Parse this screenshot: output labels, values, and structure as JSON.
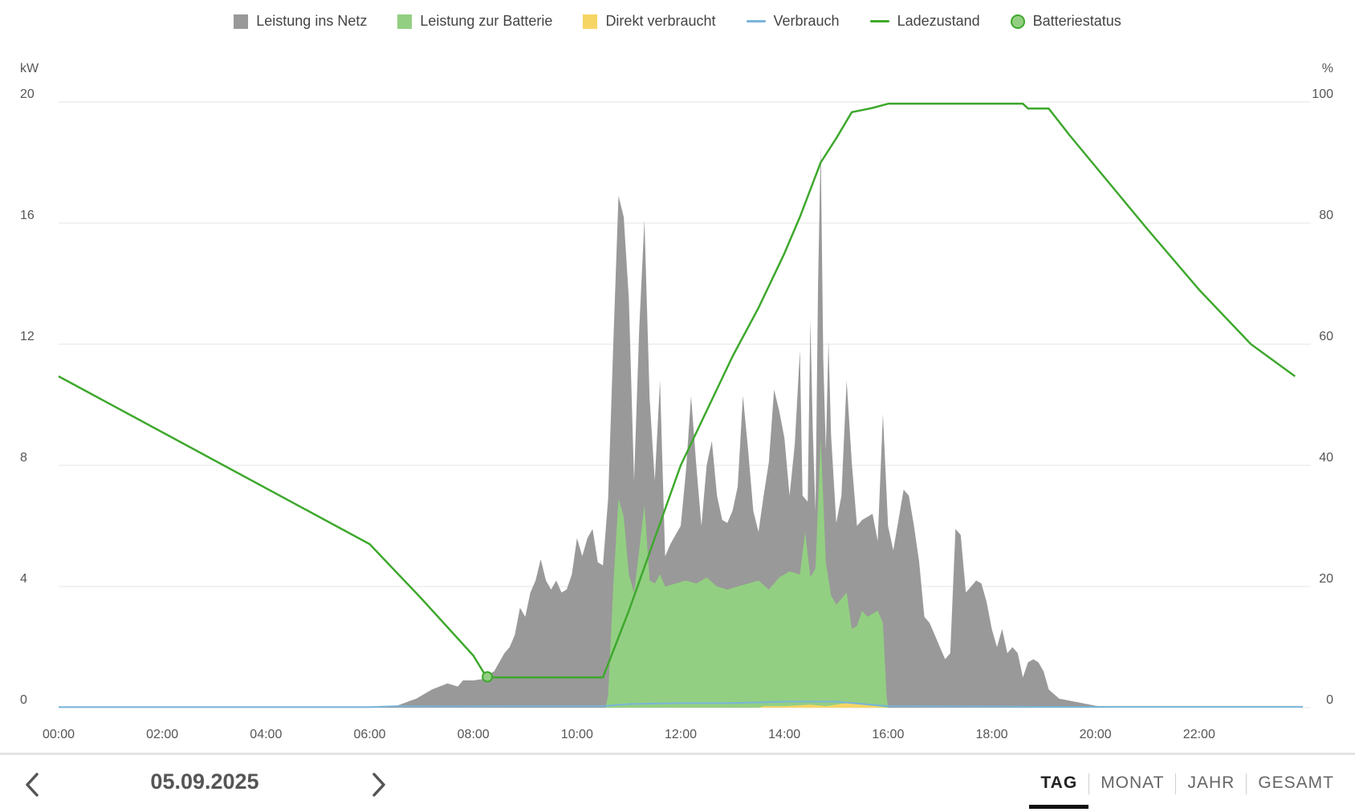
{
  "legend": [
    {
      "label": "Leistung ins Netz",
      "kind": "box",
      "color": "#999999"
    },
    {
      "label": "Leistung zur Batterie",
      "kind": "box",
      "color": "#93cf82"
    },
    {
      "label": "Direkt verbraucht",
      "kind": "box",
      "color": "#f7d565"
    },
    {
      "label": "Verbrauch",
      "kind": "line",
      "color": "#79b4d9"
    },
    {
      "label": "Ladezustand",
      "kind": "line",
      "color": "#3ea82d"
    },
    {
      "label": "Batteriestatus",
      "kind": "dot",
      "color": "#93cf82"
    }
  ],
  "chart_data": {
    "type": "area",
    "left_axis": {
      "unit": "kW",
      "min": 0,
      "max": 20,
      "ticks": [
        "0",
        "4",
        "8",
        "12",
        "16",
        "20"
      ]
    },
    "right_axis": {
      "unit": "%",
      "min": 0,
      "max": 100,
      "ticks": [
        "0",
        "20",
        "40",
        "60",
        "80",
        "100"
      ]
    },
    "x_ticks": [
      "00:00",
      "02:00",
      "04:00",
      "06:00",
      "08:00",
      "10:00",
      "12:00",
      "14:00",
      "16:00",
      "18:00",
      "20:00",
      "22:00"
    ],
    "x_range_hours": [
      0,
      24
    ],
    "grid": "horizontal",
    "legend_position": "top-center",
    "series": [
      {
        "name": "Leistung ins Netz",
        "axis": "left",
        "style": "area",
        "color": "#999999",
        "points": [
          [
            0,
            0
          ],
          [
            6.0,
            0
          ],
          [
            6.5,
            0.05
          ],
          [
            6.9,
            0.3
          ],
          [
            7.2,
            0.6
          ],
          [
            7.5,
            0.8
          ],
          [
            7.7,
            0.7
          ],
          [
            7.8,
            0.9
          ],
          [
            8.0,
            0.9
          ],
          [
            8.2,
            0.95
          ],
          [
            8.3,
            1.1
          ],
          [
            8.4,
            1.2
          ],
          [
            8.5,
            1.5
          ],
          [
            8.6,
            1.8
          ],
          [
            8.7,
            2.0
          ],
          [
            8.8,
            2.4
          ],
          [
            8.9,
            3.3
          ],
          [
            9.0,
            3.0
          ],
          [
            9.1,
            3.8
          ],
          [
            9.2,
            4.2
          ],
          [
            9.3,
            4.9
          ],
          [
            9.4,
            4.2
          ],
          [
            9.5,
            3.9
          ],
          [
            9.6,
            4.2
          ],
          [
            9.7,
            3.8
          ],
          [
            9.8,
            3.9
          ],
          [
            9.9,
            4.4
          ],
          [
            10.0,
            5.6
          ],
          [
            10.1,
            5.0
          ],
          [
            10.2,
            5.6
          ],
          [
            10.3,
            5.9
          ],
          [
            10.4,
            4.8
          ],
          [
            10.5,
            4.7
          ],
          [
            10.6,
            6.9
          ],
          [
            10.7,
            12.0
          ],
          [
            10.8,
            16.9
          ],
          [
            10.9,
            16.2
          ],
          [
            11.0,
            13.5
          ],
          [
            11.1,
            7.5
          ],
          [
            11.2,
            12.5
          ],
          [
            11.3,
            16.1
          ],
          [
            11.4,
            10.2
          ],
          [
            11.5,
            7.5
          ],
          [
            11.6,
            10.8
          ],
          [
            11.7,
            5.0
          ],
          [
            11.8,
            5.4
          ],
          [
            11.9,
            5.7
          ],
          [
            12.0,
            6.0
          ],
          [
            12.1,
            7.8
          ],
          [
            12.2,
            10.3
          ],
          [
            12.3,
            8.0
          ],
          [
            12.4,
            6.0
          ],
          [
            12.5,
            8.0
          ],
          [
            12.6,
            8.8
          ],
          [
            12.7,
            7.0
          ],
          [
            12.8,
            6.2
          ],
          [
            12.9,
            6.1
          ],
          [
            13.0,
            6.5
          ],
          [
            13.1,
            7.3
          ],
          [
            13.2,
            10.3
          ],
          [
            13.3,
            8.5
          ],
          [
            13.4,
            6.5
          ],
          [
            13.5,
            5.8
          ],
          [
            13.6,
            7.0
          ],
          [
            13.7,
            8.1
          ],
          [
            13.8,
            10.5
          ],
          [
            13.9,
            9.8
          ],
          [
            14.0,
            8.9
          ],
          [
            14.1,
            7.0
          ],
          [
            14.2,
            8.7
          ],
          [
            14.3,
            11.8
          ],
          [
            14.35,
            7.0
          ],
          [
            14.45,
            6.8
          ],
          [
            14.5,
            12.8
          ],
          [
            14.55,
            9.0
          ],
          [
            14.6,
            6.5
          ],
          [
            14.65,
            14.0
          ],
          [
            14.7,
            18.5
          ],
          [
            14.75,
            11.5
          ],
          [
            14.8,
            8.5
          ],
          [
            14.85,
            12.1
          ],
          [
            14.9,
            9.0
          ],
          [
            15.0,
            6.1
          ],
          [
            15.1,
            7.0
          ],
          [
            15.2,
            10.8
          ],
          [
            15.3,
            8.1
          ],
          [
            15.4,
            6.0
          ],
          [
            15.5,
            6.2
          ],
          [
            15.6,
            6.3
          ],
          [
            15.7,
            6.4
          ],
          [
            15.8,
            5.5
          ],
          [
            15.9,
            9.7
          ],
          [
            16.0,
            6.0
          ],
          [
            16.1,
            5.2
          ],
          [
            16.2,
            6.2
          ],
          [
            16.3,
            7.2
          ],
          [
            16.4,
            7.0
          ],
          [
            16.5,
            6.0
          ],
          [
            16.6,
            4.8
          ],
          [
            16.7,
            3.0
          ],
          [
            16.8,
            2.8
          ],
          [
            16.9,
            2.4
          ],
          [
            17.0,
            2.0
          ],
          [
            17.1,
            1.6
          ],
          [
            17.2,
            1.8
          ],
          [
            17.3,
            5.9
          ],
          [
            17.4,
            5.7
          ],
          [
            17.5,
            3.8
          ],
          [
            17.6,
            4.0
          ],
          [
            17.7,
            4.2
          ],
          [
            17.8,
            4.1
          ],
          [
            17.9,
            3.5
          ],
          [
            18.0,
            2.6
          ],
          [
            18.1,
            2.0
          ],
          [
            18.2,
            2.6
          ],
          [
            18.3,
            1.8
          ],
          [
            18.4,
            2.0
          ],
          [
            18.5,
            1.8
          ],
          [
            18.6,
            1.0
          ],
          [
            18.7,
            1.5
          ],
          [
            18.8,
            1.6
          ],
          [
            18.9,
            1.5
          ],
          [
            19.0,
            1.2
          ],
          [
            19.1,
            0.6
          ],
          [
            19.3,
            0.3
          ],
          [
            19.6,
            0.2
          ],
          [
            19.9,
            0.1
          ],
          [
            20.2,
            0
          ],
          [
            24,
            0
          ]
        ]
      },
      {
        "name": "Leistung zur Batterie",
        "axis": "left",
        "style": "area",
        "color": "#93cf82",
        "points": [
          [
            0,
            0
          ],
          [
            10.55,
            0
          ],
          [
            10.6,
            0.4
          ],
          [
            10.7,
            4.0
          ],
          [
            10.8,
            6.9
          ],
          [
            10.9,
            6.3
          ],
          [
            11.0,
            4.4
          ],
          [
            11.1,
            3.8
          ],
          [
            11.2,
            5.2
          ],
          [
            11.3,
            6.7
          ],
          [
            11.4,
            4.2
          ],
          [
            11.5,
            4.1
          ],
          [
            11.6,
            4.4
          ],
          [
            11.7,
            4.0
          ],
          [
            11.9,
            4.1
          ],
          [
            12.1,
            4.2
          ],
          [
            12.3,
            4.1
          ],
          [
            12.5,
            4.3
          ],
          [
            12.7,
            4.0
          ],
          [
            12.9,
            3.9
          ],
          [
            13.1,
            4.0
          ],
          [
            13.3,
            4.1
          ],
          [
            13.5,
            4.2
          ],
          [
            13.7,
            3.9
          ],
          [
            13.9,
            4.3
          ],
          [
            14.1,
            4.5
          ],
          [
            14.3,
            4.4
          ],
          [
            14.4,
            5.8
          ],
          [
            14.5,
            4.3
          ],
          [
            14.6,
            4.6
          ],
          [
            14.7,
            8.9
          ],
          [
            14.8,
            4.8
          ],
          [
            14.9,
            3.7
          ],
          [
            15.0,
            3.4
          ],
          [
            15.1,
            3.6
          ],
          [
            15.2,
            3.8
          ],
          [
            15.3,
            2.6
          ],
          [
            15.4,
            2.7
          ],
          [
            15.5,
            3.2
          ],
          [
            15.6,
            3.0
          ],
          [
            15.7,
            3.1
          ],
          [
            15.8,
            3.2
          ],
          [
            15.9,
            2.8
          ],
          [
            15.97,
            0.4
          ],
          [
            16.0,
            0
          ],
          [
            24,
            0
          ]
        ]
      },
      {
        "name": "Direkt verbraucht",
        "axis": "left",
        "style": "area",
        "color": "#f7d565",
        "points": [
          [
            0,
            0
          ],
          [
            13.5,
            0
          ],
          [
            13.6,
            0.05
          ],
          [
            14.0,
            0.05
          ],
          [
            14.5,
            0.1
          ],
          [
            14.8,
            0.05
          ],
          [
            15.2,
            0.15
          ],
          [
            15.5,
            0.1
          ],
          [
            16.0,
            0
          ],
          [
            24,
            0
          ]
        ]
      },
      {
        "name": "Verbrauch",
        "axis": "left",
        "style": "line",
        "color": "#79b4d9",
        "points": [
          [
            0,
            0.02
          ],
          [
            6.0,
            0.02
          ],
          [
            6.5,
            0.05
          ],
          [
            7.5,
            0.04
          ],
          [
            9.0,
            0.05
          ],
          [
            10.5,
            0.05
          ],
          [
            11.0,
            0.12
          ],
          [
            12.0,
            0.15
          ],
          [
            13.0,
            0.15
          ],
          [
            14.0,
            0.2
          ],
          [
            15.0,
            0.2
          ],
          [
            16.0,
            0.05
          ],
          [
            19.0,
            0.03
          ],
          [
            24,
            0.03
          ]
        ]
      },
      {
        "name": "Ladezustand",
        "axis": "right",
        "style": "line",
        "color": "#3ea82d",
        "points": [
          [
            0,
            54.7
          ],
          [
            6.0,
            27.0
          ],
          [
            7.0,
            18.0
          ],
          [
            8.0,
            8.6
          ],
          [
            8.25,
            5.1
          ],
          [
            8.4,
            5.0
          ],
          [
            10.0,
            5.0
          ],
          [
            10.5,
            5.0
          ],
          [
            11.0,
            16.0
          ],
          [
            12.0,
            40.0
          ],
          [
            13.0,
            58.0
          ],
          [
            13.5,
            66.0
          ],
          [
            14.0,
            75.0
          ],
          [
            14.3,
            81.0
          ],
          [
            14.7,
            90.0
          ],
          [
            15.0,
            94.0
          ],
          [
            15.3,
            98.3
          ],
          [
            15.7,
            99.0
          ],
          [
            16.0,
            99.7
          ],
          [
            18.6,
            99.7
          ],
          [
            18.7,
            98.9
          ],
          [
            19.1,
            98.9
          ],
          [
            19.5,
            94.5
          ],
          [
            21.0,
            79.0
          ],
          [
            22.0,
            69.0
          ],
          [
            23.0,
            60.0
          ],
          [
            23.85,
            54.7
          ]
        ]
      }
    ],
    "markers": [
      {
        "name": "Batteriestatus",
        "x": 8.27,
        "y": 5.1,
        "axis": "right",
        "color": "#93cf82"
      }
    ]
  },
  "footer": {
    "date": "05.09.2025",
    "tabs": [
      "TAG",
      "MONAT",
      "JAHR",
      "GESAMT"
    ],
    "active_tab": "TAG"
  }
}
